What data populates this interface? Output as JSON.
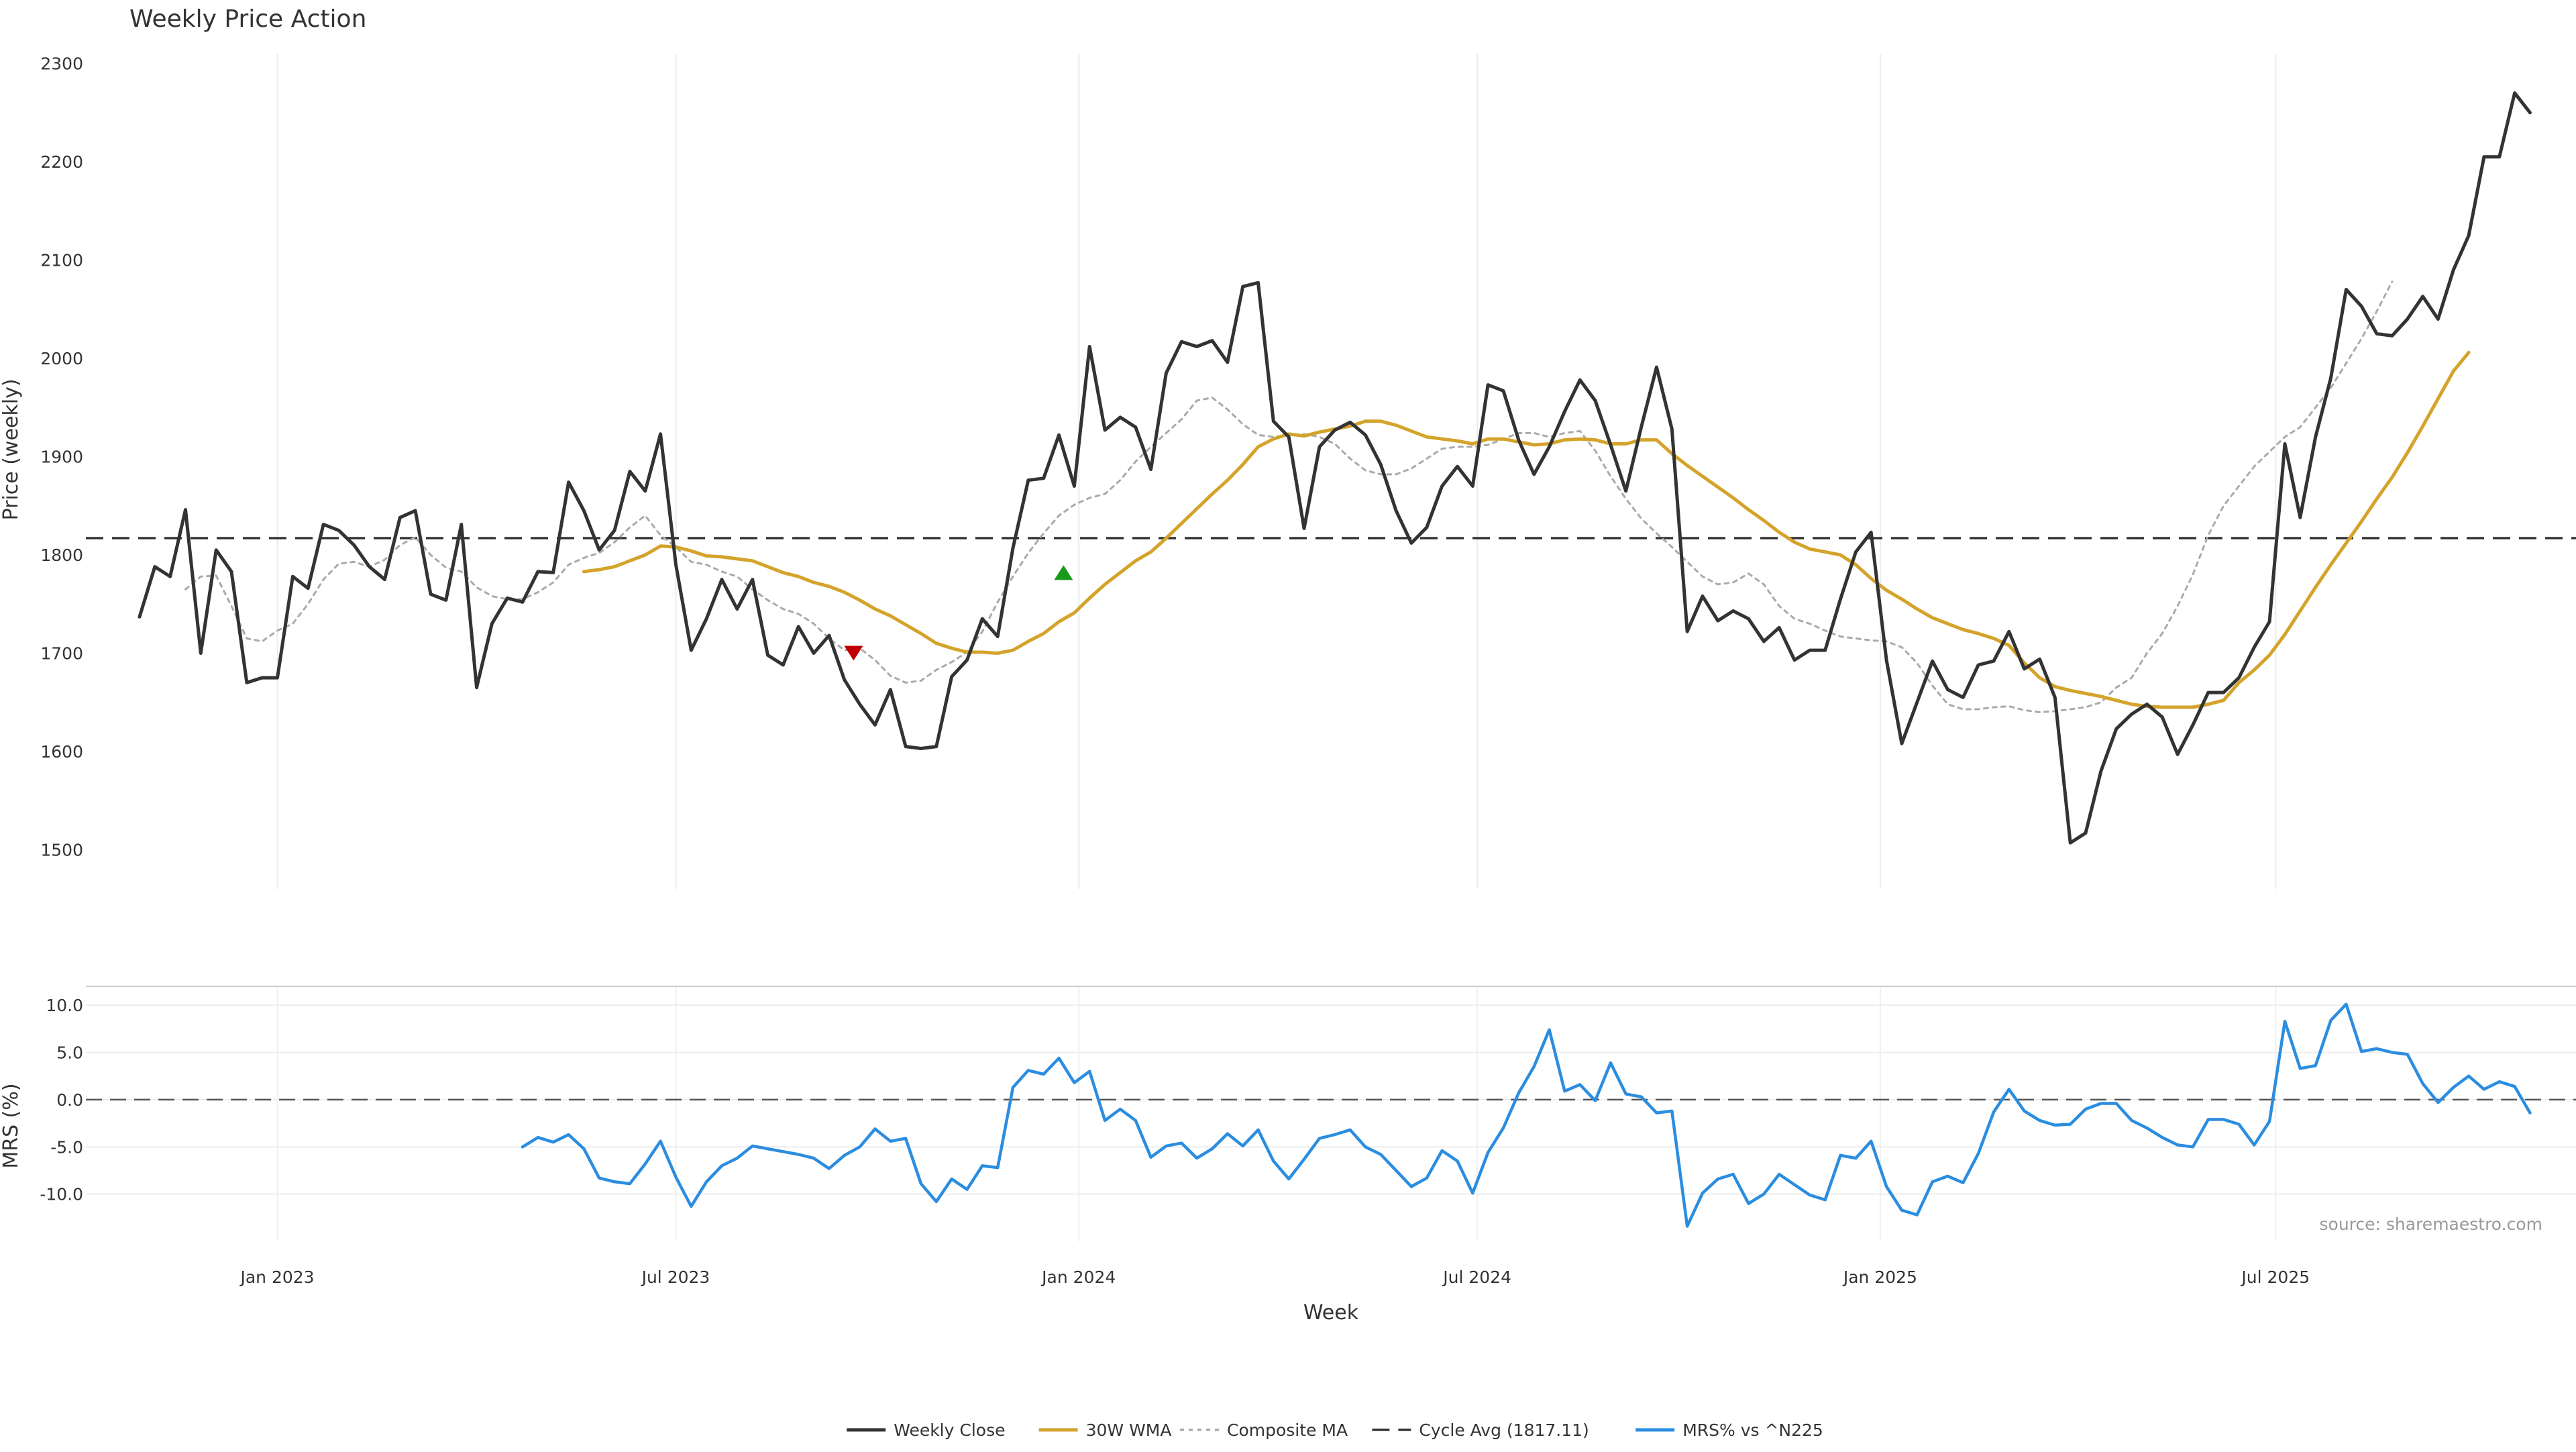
{
  "chart_data": [
    {
      "type": "line",
      "title": "Weekly Price Action",
      "xlabel": "Week",
      "ylabel": "Price (weekly)",
      "ylim": [
        1460,
        2310
      ],
      "yticks": [
        1500,
        1600,
        1700,
        1800,
        1900,
        2000,
        2100,
        2200,
        2300
      ],
      "xlim": [
        -12.5,
        150
      ],
      "xticks": [
        {
          "label": "Jan 2023",
          "week": 0
        },
        {
          "label": "Jul 2023",
          "week": 26
        },
        {
          "label": "Jan 2024",
          "week": 52.3
        },
        {
          "label": "Jul 2024",
          "week": 78.3
        },
        {
          "label": "Jan 2025",
          "week": 104.6
        },
        {
          "label": "Jul 2025",
          "week": 130.4
        }
      ],
      "grid": "vertical",
      "series": [
        {
          "name": "Weekly Close",
          "color": "#333333",
          "style": "solid",
          "x_start": -9,
          "values": [
            1737,
            1788,
            1778,
            1846,
            1700,
            1805,
            1783,
            1670,
            1675,
            1675,
            1778,
            1766,
            1831,
            1825,
            1810,
            1788,
            1775,
            1838,
            1845,
            1760,
            1754,
            1831,
            1665,
            1730,
            1756,
            1752,
            1783,
            1782,
            1874,
            1845,
            1805,
            1825,
            1885,
            1865,
            1923,
            1790,
            1703,
            1735,
            1775,
            1745,
            1775,
            1698,
            1688,
            1727,
            1700,
            1718,
            1673,
            1648,
            1627,
            1663,
            1605,
            1603,
            1605,
            1676,
            1693,
            1735,
            1717,
            1807,
            1876,
            1878,
            1922,
            1870,
            2012,
            1927,
            1940,
            1930,
            1887,
            1985,
            2017,
            2012,
            2018,
            1996,
            2073,
            2077,
            1936,
            1920,
            1827,
            1910,
            1927,
            1935,
            1922,
            1892,
            1845,
            1812,
            1828,
            1870,
            1890,
            1870,
            1973,
            1967,
            1917,
            1882,
            1910,
            1946,
            1978,
            1957,
            1912,
            1865,
            1930,
            1991,
            1928,
            1722,
            1758,
            1733,
            1743,
            1735,
            1712,
            1726,
            1693,
            1703,
            1703,
            1755,
            1803,
            1823,
            1693,
            1608,
            1650,
            1692,
            1663,
            1655,
            1688,
            1692,
            1722,
            1684,
            1694,
            1655,
            1507,
            1517,
            1580,
            1623,
            1638,
            1648,
            1635,
            1597,
            1627,
            1660,
            1660,
            1675,
            1706,
            1732,
            1913,
            1838,
            1920,
            1980,
            2070,
            2053,
            2025,
            2023,
            2040,
            2063,
            2040,
            2090,
            2125,
            2205,
            2205,
            2270,
            2250
          ]
        },
        {
          "name": "30W WMA",
          "color": "#d4a32b",
          "style": "solid",
          "x_start": 20,
          "values": [
            1783,
            1785,
            1788,
            1794,
            1800,
            1809,
            1808,
            1804,
            1799,
            1798,
            1796,
            1794,
            1788,
            1782,
            1778,
            1772,
            1768,
            1762,
            1754,
            1745,
            1738,
            1729,
            1720,
            1710,
            1705,
            1701,
            1701,
            1700,
            1703,
            1712,
            1720,
            1732,
            1741,
            1756,
            1770,
            1782,
            1794,
            1803,
            1817,
            1832,
            1847,
            1862,
            1876,
            1892,
            1910,
            1918,
            1923,
            1921,
            1925,
            1928,
            1931,
            1936,
            1936,
            1932,
            1926,
            1920,
            1918,
            1916,
            1913,
            1918,
            1918,
            1915,
            1912,
            1913,
            1917,
            1918,
            1917,
            1913,
            1913,
            1917,
            1917,
            1903,
            1891,
            1880,
            1869,
            1858,
            1846,
            1835,
            1823,
            1813,
            1806,
            1803,
            1800,
            1790,
            1776,
            1764,
            1755,
            1745,
            1736,
            1730,
            1724,
            1720,
            1715,
            1708,
            1690,
            1675,
            1666,
            1662,
            1659,
            1656,
            1652,
            1648,
            1646,
            1645,
            1645,
            1645,
            1648,
            1652,
            1670,
            1683,
            1698,
            1719,
            1743,
            1767,
            1790,
            1812,
            1834,
            1857,
            1879,
            1904,
            1931,
            1959,
            1987,
            2006
          ]
        },
        {
          "name": "Composite MA",
          "color": "#aaaaaa",
          "style": "dotted",
          "x_start": -6,
          "values": [
            1765,
            1778,
            1779,
            1748,
            1715,
            1712,
            1723,
            1730,
            1750,
            1775,
            1791,
            1793,
            1788,
            1795,
            1810,
            1818,
            1800,
            1787,
            1783,
            1767,
            1758,
            1755,
            1755,
            1762,
            1772,
            1790,
            1797,
            1802,
            1813,
            1828,
            1840,
            1820,
            1808,
            1793,
            1790,
            1783,
            1778,
            1765,
            1754,
            1745,
            1740,
            1730,
            1715,
            1703,
            1705,
            1693,
            1677,
            1670,
            1672,
            1683,
            1691,
            1701,
            1722,
            1752,
            1778,
            1802,
            1822,
            1840,
            1851,
            1858,
            1862,
            1876,
            1895,
            1910,
            1924,
            1938,
            1957,
            1960,
            1948,
            1933,
            1922,
            1920,
            1922,
            1923,
            1920,
            1913,
            1898,
            1886,
            1882,
            1882,
            1888,
            1898,
            1908,
            1910,
            1910,
            1912,
            1918,
            1924,
            1924,
            1920,
            1924,
            1926,
            1906,
            1880,
            1857,
            1837,
            1822,
            1808,
            1793,
            1778,
            1770,
            1772,
            1781,
            1770,
            1748,
            1735,
            1730,
            1723,
            1717,
            1715,
            1713,
            1712,
            1706,
            1690,
            1667,
            1648,
            1643,
            1643,
            1645,
            1646,
            1642,
            1640,
            1641,
            1643,
            1645,
            1650,
            1665,
            1675,
            1700,
            1720,
            1748,
            1780,
            1820,
            1850,
            1870,
            1890,
            1905,
            1920,
            1930,
            1950,
            1970,
            1995,
            2020,
            2048,
            2078
          ]
        },
        {
          "name": "Cycle Avg (1817.11)",
          "color": "#333333",
          "style": "dashed",
          "constant": 1817.11
        }
      ]
    },
    {
      "type": "line",
      "xlabel": "Week",
      "ylabel": "MRS (%)",
      "ylim": [
        -15,
        12
      ],
      "yticks": [
        {
          "value": 10,
          "label": "10.0"
        },
        {
          "value": 5,
          "label": "5.0"
        },
        {
          "value": 0,
          "label": "0.0"
        },
        {
          "value": -5,
          "label": "-5.0"
        },
        {
          "value": -10,
          "label": "-10.0"
        }
      ],
      "reference_line": 0,
      "series": [
        {
          "name": "MRS% vs ^N225",
          "color": "#2b8de0",
          "style": "solid",
          "x_start": 16,
          "values": [
            -5.0,
            -4.0,
            -4.5,
            -3.7,
            -5.2,
            -8.3,
            -8.7,
            -8.9,
            -6.8,
            -4.4,
            -8.2,
            -11.3,
            -8.7,
            -7.0,
            -6.2,
            -4.9,
            -5.2,
            -5.5,
            -5.8,
            -6.2,
            -7.3,
            -5.9,
            -5.0,
            -3.1,
            -4.4,
            -4.1,
            -8.9,
            -10.8,
            -8.4,
            -9.5,
            -7.0,
            -7.2,
            1.3,
            3.1,
            2.7,
            4.4,
            1.8,
            3.0,
            -2.2,
            -1.0,
            -2.2,
            -6.1,
            -4.9,
            -4.6,
            -6.2,
            -5.2,
            -3.6,
            -4.9,
            -3.2,
            -6.5,
            -8.4,
            -6.3,
            -4.1,
            -3.7,
            -3.2,
            -5.0,
            -5.8,
            -7.5,
            -9.2,
            -8.3,
            -5.4,
            -6.5,
            -9.9,
            -5.6,
            -3.0,
            0.7,
            3.5,
            7.4,
            0.9,
            1.6,
            -0.1,
            3.9,
            0.6,
            0.3,
            -1.4,
            -1.2,
            -13.4,
            -9.9,
            -8.4,
            -7.9,
            -11.0,
            -10.0,
            -7.9,
            -9.0,
            -10.1,
            -10.6,
            -5.9,
            -6.2,
            -4.4,
            -9.2,
            -11.7,
            -12.2,
            -8.7,
            -8.1,
            -8.8,
            -5.7,
            -1.3,
            1.1,
            -1.2,
            -2.2,
            -2.7,
            -2.6,
            -1.0,
            -0.4,
            -0.4,
            -2.2,
            -3.0,
            -4.0,
            -4.8,
            -5.0,
            -2.1,
            -2.1,
            -2.6,
            -4.8,
            -2.3,
            8.3,
            3.3,
            3.6,
            8.4,
            10.1,
            5.1,
            5.4,
            5.0,
            4.8,
            1.7,
            -0.3,
            1.3,
            2.5,
            1.1,
            1.9,
            1.4,
            -1.4
          ]
        }
      ]
    }
  ],
  "legend": {
    "position": "bottom-center",
    "items": [
      {
        "label": "Weekly Close",
        "color": "#333333",
        "style": "solid"
      },
      {
        "label": "30W WMA",
        "color": "#d4a32b",
        "style": "solid"
      },
      {
        "label": "Composite MA",
        "color": "#aaaaaa",
        "style": "dotted"
      },
      {
        "label": "Cycle Avg (1817.11)",
        "color": "#333333",
        "style": "dashed"
      },
      {
        "label": "MRS% vs ^N225",
        "color": "#2b8de0",
        "style": "solid"
      }
    ]
  },
  "markers": [
    {
      "type": "sell",
      "shape": "triangle-down",
      "color": "#c00000",
      "week": 37.6,
      "value": 1700
    },
    {
      "type": "buy",
      "shape": "triangle-up",
      "color": "#1a9a1a",
      "week": 51.3,
      "value": 1782
    }
  ],
  "source": "source: sharemaestro.com"
}
